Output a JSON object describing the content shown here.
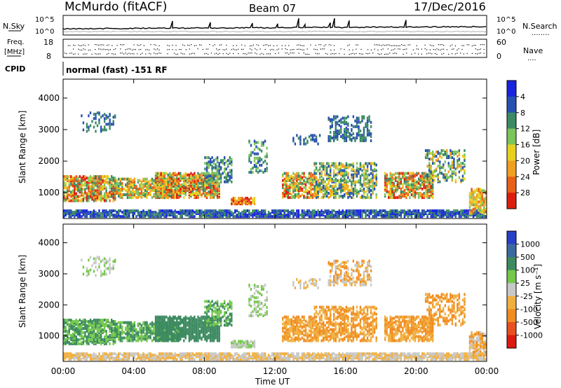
{
  "header": {
    "station": "McMurdo (fitACF)",
    "beam": "Beam 07",
    "date": "17/Dec/2016"
  },
  "noise_panel": {
    "left_label": "N.Sky",
    "right_label": "N.Search",
    "right_dots": "........",
    "ticks_left": [
      "10^5",
      "10^0"
    ],
    "ticks_right": [
      "10^5",
      "10^0"
    ]
  },
  "freq_panel": {
    "label_line1": "Freq.",
    "label_line2": "[MHz]",
    "ticks_left": [
      "18",
      "8"
    ],
    "ticks_right": [
      "60",
      "0"
    ],
    "right_label": "Nave",
    "right_dots": "...."
  },
  "cpid_panel": {
    "label": "CPID",
    "text": "normal (fast) -151 RF"
  },
  "x_axis": {
    "label": "Time UT",
    "ticks": [
      "00:00",
      "04:00",
      "08:00",
      "12:00",
      "16:00",
      "20:00",
      "00:00"
    ]
  },
  "chart_data": [
    {
      "type": "heatmap",
      "title": "Power",
      "xlabel": "Time UT",
      "ylabel": "Slant Range [km]",
      "y_ticks": [
        "1000",
        "2000",
        "3000",
        "4000"
      ],
      "colorbar_label": "Power [dB]",
      "colorbar_ticks": [
        "4",
        "8",
        "12",
        "16",
        "20",
        "24",
        "28"
      ],
      "colorbar_colors": [
        "#1a24e0",
        "#2850b0",
        "#3c8a64",
        "#7cc45c",
        "#e8d020",
        "#f0a020",
        "#e86018",
        "#dc1e10"
      ]
    },
    {
      "type": "heatmap",
      "title": "Velocity",
      "xlabel": "Time UT",
      "ylabel": "Slant Range [km]",
      "y_ticks": [
        "1000",
        "2000",
        "3000",
        "4000"
      ],
      "colorbar_label": "Velocity [m s⁻¹]",
      "colorbar_ticks": [
        "1000",
        "500",
        "100",
        "25",
        "-25",
        "-100",
        "-500",
        "-1000"
      ],
      "colorbar_colors": [
        "#2840c8",
        "#3c6aa0",
        "#3c8a60",
        "#74c84c",
        "#c8c8c8",
        "#f0b040",
        "#f08c20",
        "#e85020",
        "#dc1a10"
      ]
    }
  ]
}
